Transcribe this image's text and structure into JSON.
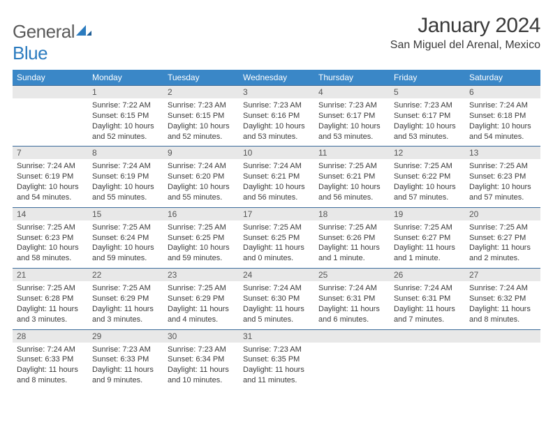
{
  "brand": {
    "name_part1": "General",
    "name_part2": "Blue"
  },
  "title": "January 2024",
  "location": "San Miguel del Arenal, Mexico",
  "colors": {
    "header_bg": "#3a87c7",
    "header_text": "#ffffff",
    "day_bg": "#e8e8e8",
    "rule": "#3a6a9a",
    "brand_gray": "#5a5a5a",
    "brand_blue": "#2b7bbf"
  },
  "dow": [
    "Sunday",
    "Monday",
    "Tuesday",
    "Wednesday",
    "Thursday",
    "Friday",
    "Saturday"
  ],
  "weeks": [
    [
      null,
      {
        "d": "1",
        "sr": "7:22 AM",
        "ss": "6:15 PM",
        "dl": "10 hours and 52 minutes."
      },
      {
        "d": "2",
        "sr": "7:23 AM",
        "ss": "6:15 PM",
        "dl": "10 hours and 52 minutes."
      },
      {
        "d": "3",
        "sr": "7:23 AM",
        "ss": "6:16 PM",
        "dl": "10 hours and 53 minutes."
      },
      {
        "d": "4",
        "sr": "7:23 AM",
        "ss": "6:17 PM",
        "dl": "10 hours and 53 minutes."
      },
      {
        "d": "5",
        "sr": "7:23 AM",
        "ss": "6:17 PM",
        "dl": "10 hours and 53 minutes."
      },
      {
        "d": "6",
        "sr": "7:24 AM",
        "ss": "6:18 PM",
        "dl": "10 hours and 54 minutes."
      }
    ],
    [
      {
        "d": "7",
        "sr": "7:24 AM",
        "ss": "6:19 PM",
        "dl": "10 hours and 54 minutes."
      },
      {
        "d": "8",
        "sr": "7:24 AM",
        "ss": "6:19 PM",
        "dl": "10 hours and 55 minutes."
      },
      {
        "d": "9",
        "sr": "7:24 AM",
        "ss": "6:20 PM",
        "dl": "10 hours and 55 minutes."
      },
      {
        "d": "10",
        "sr": "7:24 AM",
        "ss": "6:21 PM",
        "dl": "10 hours and 56 minutes."
      },
      {
        "d": "11",
        "sr": "7:25 AM",
        "ss": "6:21 PM",
        "dl": "10 hours and 56 minutes."
      },
      {
        "d": "12",
        "sr": "7:25 AM",
        "ss": "6:22 PM",
        "dl": "10 hours and 57 minutes."
      },
      {
        "d": "13",
        "sr": "7:25 AM",
        "ss": "6:23 PM",
        "dl": "10 hours and 57 minutes."
      }
    ],
    [
      {
        "d": "14",
        "sr": "7:25 AM",
        "ss": "6:23 PM",
        "dl": "10 hours and 58 minutes."
      },
      {
        "d": "15",
        "sr": "7:25 AM",
        "ss": "6:24 PM",
        "dl": "10 hours and 59 minutes."
      },
      {
        "d": "16",
        "sr": "7:25 AM",
        "ss": "6:25 PM",
        "dl": "10 hours and 59 minutes."
      },
      {
        "d": "17",
        "sr": "7:25 AM",
        "ss": "6:25 PM",
        "dl": "11 hours and 0 minutes."
      },
      {
        "d": "18",
        "sr": "7:25 AM",
        "ss": "6:26 PM",
        "dl": "11 hours and 1 minute."
      },
      {
        "d": "19",
        "sr": "7:25 AM",
        "ss": "6:27 PM",
        "dl": "11 hours and 1 minute."
      },
      {
        "d": "20",
        "sr": "7:25 AM",
        "ss": "6:27 PM",
        "dl": "11 hours and 2 minutes."
      }
    ],
    [
      {
        "d": "21",
        "sr": "7:25 AM",
        "ss": "6:28 PM",
        "dl": "11 hours and 3 minutes."
      },
      {
        "d": "22",
        "sr": "7:25 AM",
        "ss": "6:29 PM",
        "dl": "11 hours and 3 minutes."
      },
      {
        "d": "23",
        "sr": "7:25 AM",
        "ss": "6:29 PM",
        "dl": "11 hours and 4 minutes."
      },
      {
        "d": "24",
        "sr": "7:24 AM",
        "ss": "6:30 PM",
        "dl": "11 hours and 5 minutes."
      },
      {
        "d": "25",
        "sr": "7:24 AM",
        "ss": "6:31 PM",
        "dl": "11 hours and 6 minutes."
      },
      {
        "d": "26",
        "sr": "7:24 AM",
        "ss": "6:31 PM",
        "dl": "11 hours and 7 minutes."
      },
      {
        "d": "27",
        "sr": "7:24 AM",
        "ss": "6:32 PM",
        "dl": "11 hours and 8 minutes."
      }
    ],
    [
      {
        "d": "28",
        "sr": "7:24 AM",
        "ss": "6:33 PM",
        "dl": "11 hours and 8 minutes."
      },
      {
        "d": "29",
        "sr": "7:23 AM",
        "ss": "6:33 PM",
        "dl": "11 hours and 9 minutes."
      },
      {
        "d": "30",
        "sr": "7:23 AM",
        "ss": "6:34 PM",
        "dl": "11 hours and 10 minutes."
      },
      {
        "d": "31",
        "sr": "7:23 AM",
        "ss": "6:35 PM",
        "dl": "11 hours and 11 minutes."
      },
      null,
      null,
      null
    ]
  ],
  "labels": {
    "sunrise": "Sunrise:",
    "sunset": "Sunset:",
    "daylight": "Daylight:"
  }
}
